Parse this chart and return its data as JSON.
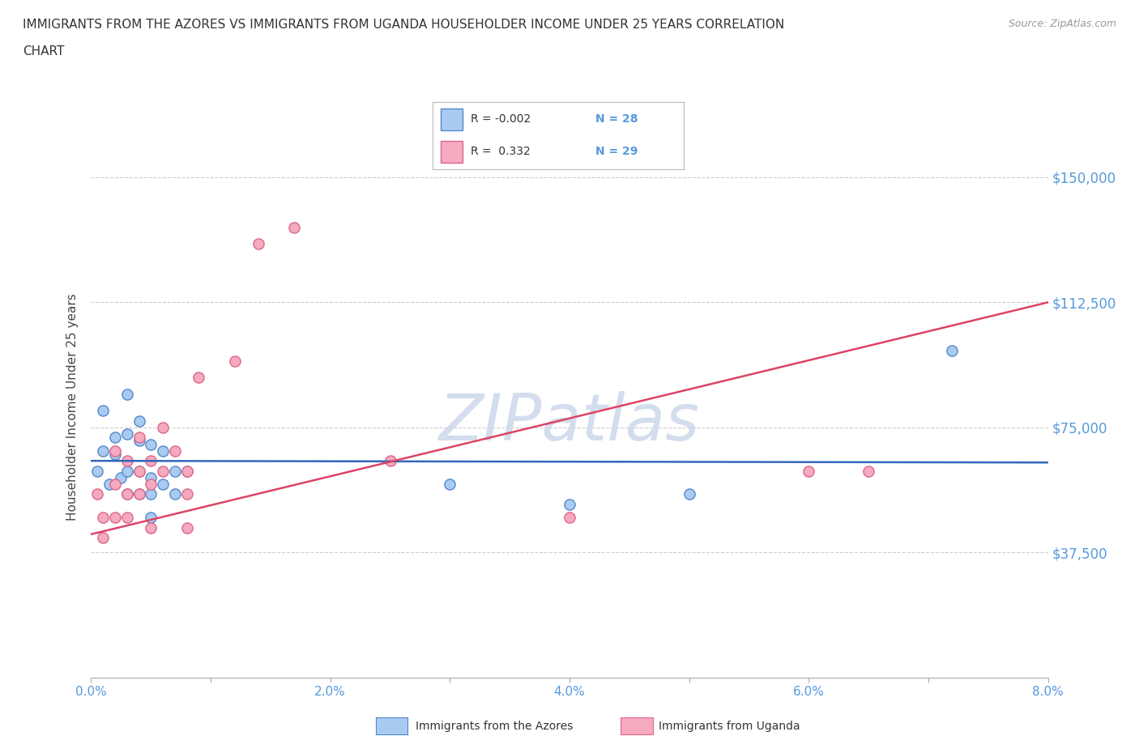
{
  "title_line1": "IMMIGRANTS FROM THE AZORES VS IMMIGRANTS FROM UGANDA HOUSEHOLDER INCOME UNDER 25 YEARS CORRELATION",
  "title_line2": "CHART",
  "source": "Source: ZipAtlas.com",
  "ylabel": "Householder Income Under 25 years",
  "xlim": [
    0,
    0.08
  ],
  "ylim": [
    0,
    162500
  ],
  "yticks": [
    0,
    37500,
    75000,
    112500,
    150000
  ],
  "ytick_labels": [
    "",
    "$37,500",
    "$75,000",
    "$112,500",
    "$150,000"
  ],
  "xticks": [
    0.0,
    0.01,
    0.02,
    0.03,
    0.04,
    0.05,
    0.06,
    0.07,
    0.08
  ],
  "xtick_labels": [
    "0.0%",
    "",
    "2.0%",
    "",
    "4.0%",
    "",
    "6.0%",
    "",
    "8.0%"
  ],
  "azores_x": [
    0.0005,
    0.001,
    0.001,
    0.0015,
    0.002,
    0.002,
    0.0025,
    0.003,
    0.003,
    0.003,
    0.003,
    0.004,
    0.004,
    0.004,
    0.004,
    0.005,
    0.005,
    0.005,
    0.005,
    0.006,
    0.006,
    0.007,
    0.007,
    0.008,
    0.03,
    0.04,
    0.05,
    0.072
  ],
  "azores_y": [
    62000,
    80000,
    68000,
    58000,
    67000,
    72000,
    60000,
    85000,
    73000,
    62000,
    55000,
    77000,
    71000,
    62000,
    55000,
    70000,
    60000,
    55000,
    48000,
    68000,
    58000,
    62000,
    55000,
    62000,
    58000,
    52000,
    55000,
    98000
  ],
  "uganda_x": [
    0.0005,
    0.001,
    0.001,
    0.002,
    0.002,
    0.002,
    0.003,
    0.003,
    0.003,
    0.004,
    0.004,
    0.004,
    0.005,
    0.005,
    0.005,
    0.006,
    0.006,
    0.007,
    0.008,
    0.008,
    0.008,
    0.009,
    0.012,
    0.014,
    0.017,
    0.025,
    0.04,
    0.06,
    0.065
  ],
  "uganda_y": [
    55000,
    48000,
    42000,
    68000,
    58000,
    48000,
    65000,
    55000,
    48000,
    72000,
    62000,
    55000,
    65000,
    58000,
    45000,
    75000,
    62000,
    68000,
    62000,
    55000,
    45000,
    90000,
    95000,
    130000,
    135000,
    65000,
    48000,
    62000,
    62000
  ],
  "azores_color": "#aacbf0",
  "uganda_color": "#f5aabf",
  "azores_edge": "#5588cc",
  "uganda_edge": "#dd6688",
  "azores_R": -0.002,
  "azores_N": 28,
  "uganda_R": 0.332,
  "uganda_N": 29,
  "reg_line_azores_color": "#3366bb",
  "reg_line_uganda_color": "#dd4466",
  "watermark_color": "#ccd8ea",
  "grid_color": "#cccccc",
  "tick_color": "#5599dd",
  "background_color": "#ffffff"
}
